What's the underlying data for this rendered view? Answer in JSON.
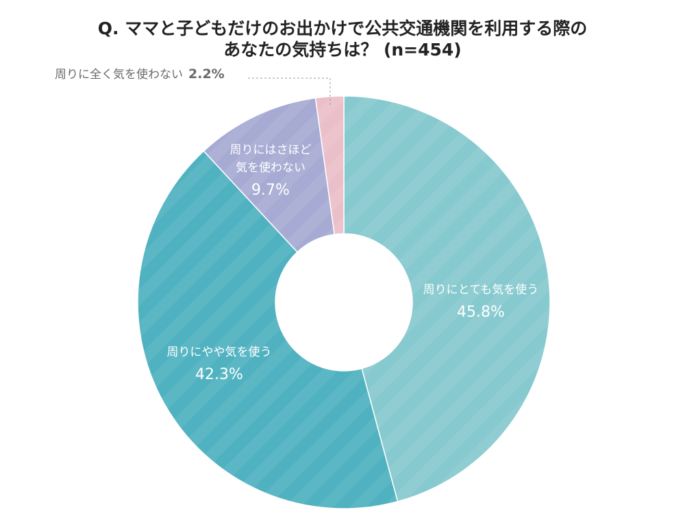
{
  "title": {
    "line1": "Q. ママと子どもだけのお出かけで公共交通機関を利用する際の",
    "line2": "あなたの気持ちは？ (n=454)"
  },
  "chart_data": {
    "type": "pie",
    "donut": true,
    "slices": [
      {
        "label": "周りにとても気を使う",
        "label_lines": [
          "周りにとても気を使う"
        ],
        "value": 45.8,
        "value_label": "45.8%",
        "color": "#86c9cf"
      },
      {
        "label": "周りにやや気を使う",
        "label_lines": [
          "周りにやや気を使う"
        ],
        "value": 42.3,
        "value_label": "42.3%",
        "color": "#50b2c0"
      },
      {
        "label": "周りにはさほど気を使わない",
        "label_lines": [
          "周りにはさほど",
          "気を使わない"
        ],
        "value": 9.7,
        "value_label": "9.7%",
        "color": "#a7abd3"
      },
      {
        "label": "周りに全く気を使わない",
        "label_lines": [
          "周りに全く気を使わない"
        ],
        "value": 2.2,
        "value_label": "2.2%",
        "color": "#ebbfca"
      }
    ]
  }
}
